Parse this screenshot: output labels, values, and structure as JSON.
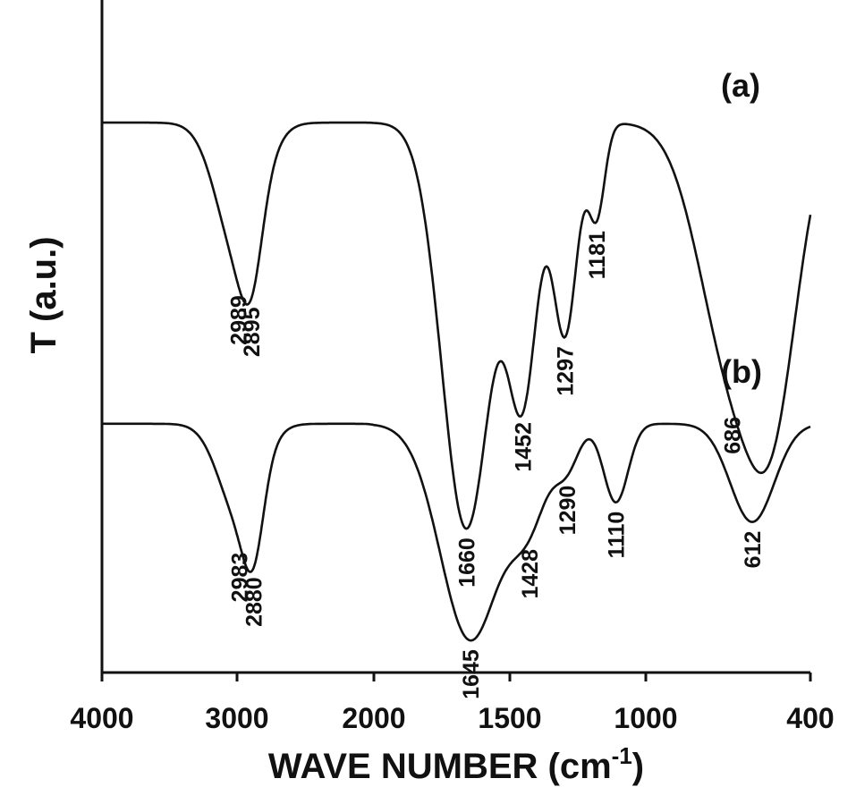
{
  "chart_data": {
    "type": "line",
    "title": "",
    "xlabel": "WAVE NUMBER (cm",
    "xlabel_sup": "-1",
    "xlabel_suffix": ")",
    "ylabel": "T (a.u.)",
    "xlim": [
      4000,
      400
    ],
    "x_scale": "reversed",
    "ylim": [
      0,
      1
    ],
    "grid": false,
    "x_ticks": [
      4000,
      3000,
      2000,
      1500,
      1000,
      400
    ],
    "x_tick_labels": [
      "4000",
      "3000",
      "2000",
      "1500",
      "1000",
      "400"
    ],
    "series": [
      {
        "name": "(a)",
        "baseline": 0.84,
        "peaks": [
          {
            "x": 2989,
            "depth": 0.2,
            "width": 160
          },
          {
            "x": 2895,
            "depth": 0.1,
            "width": 80
          },
          {
            "x": 1660,
            "depth": 0.62,
            "width": 90
          },
          {
            "x": 1452,
            "depth": 0.4,
            "width": 55
          },
          {
            "x": 1297,
            "depth": 0.32,
            "width": 45
          },
          {
            "x": 1181,
            "depth": 0.14,
            "width": 30
          },
          {
            "x": 686,
            "depth": 0.36,
            "width": 120
          },
          {
            "x": 530,
            "depth": 0.34,
            "width": 90
          }
        ],
        "peak_labels": [
          "2989",
          "2895",
          "1660",
          "1452",
          "1297",
          "1181",
          "686"
        ]
      },
      {
        "name": "(b)",
        "baseline": 0.38,
        "peaks": [
          {
            "x": 2983,
            "depth": 0.14,
            "width": 150
          },
          {
            "x": 2880,
            "depth": 0.11,
            "width": 75
          },
          {
            "x": 1645,
            "depth": 0.33,
            "width": 110
          },
          {
            "x": 1428,
            "depth": 0.13,
            "width": 70
          },
          {
            "x": 1290,
            "depth": 0.06,
            "width": 45
          },
          {
            "x": 1110,
            "depth": 0.12,
            "width": 45
          },
          {
            "x": 612,
            "depth": 0.15,
            "width": 80
          }
        ],
        "peak_labels": [
          "2983",
          "2880",
          "1645",
          "1428",
          "1290",
          "1110",
          "612"
        ]
      }
    ]
  }
}
